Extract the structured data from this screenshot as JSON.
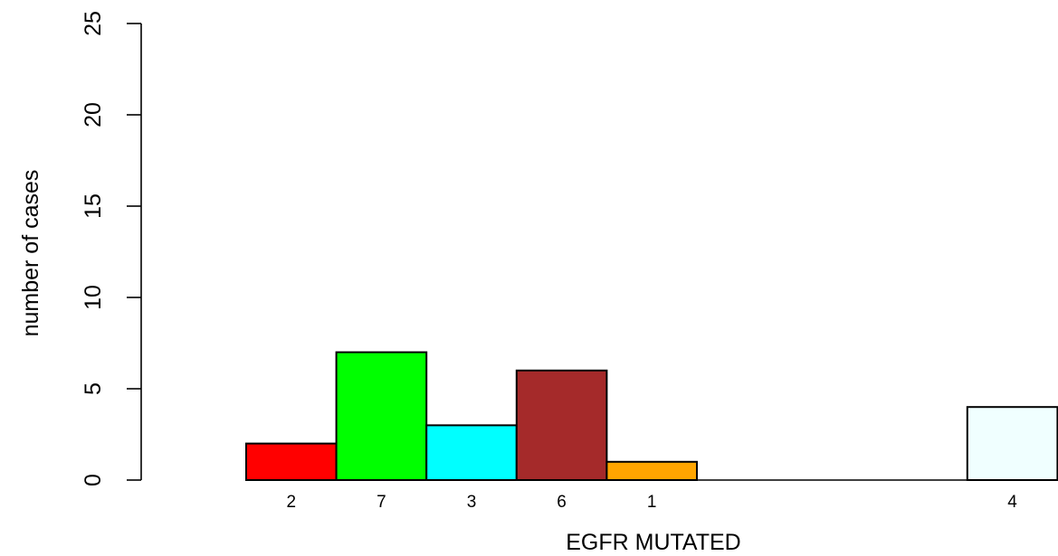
{
  "chart_data": {
    "type": "bar",
    "title": "",
    "xlabel": "EGFR MUTATED",
    "ylabel": "number of cases",
    "ylim": [
      0,
      25
    ],
    "yticks": [
      "0",
      "5",
      "10",
      "15",
      "20",
      "25"
    ],
    "grid": false,
    "legend": "none",
    "slots": 9,
    "bars": [
      {
        "slot": 0,
        "value": 2,
        "label": "2",
        "color": "#ff0000"
      },
      {
        "slot": 1,
        "value": 7,
        "label": "7",
        "color": "#00ff00"
      },
      {
        "slot": 2,
        "value": 3,
        "label": "3",
        "color": "#00ffff"
      },
      {
        "slot": 3,
        "value": 6,
        "label": "6",
        "color": "#a52a2a"
      },
      {
        "slot": 4,
        "value": 1,
        "label": "1",
        "color": "#ffa500"
      },
      {
        "slot": 8,
        "value": 4,
        "label": "4",
        "color": "#f0ffff"
      }
    ]
  }
}
